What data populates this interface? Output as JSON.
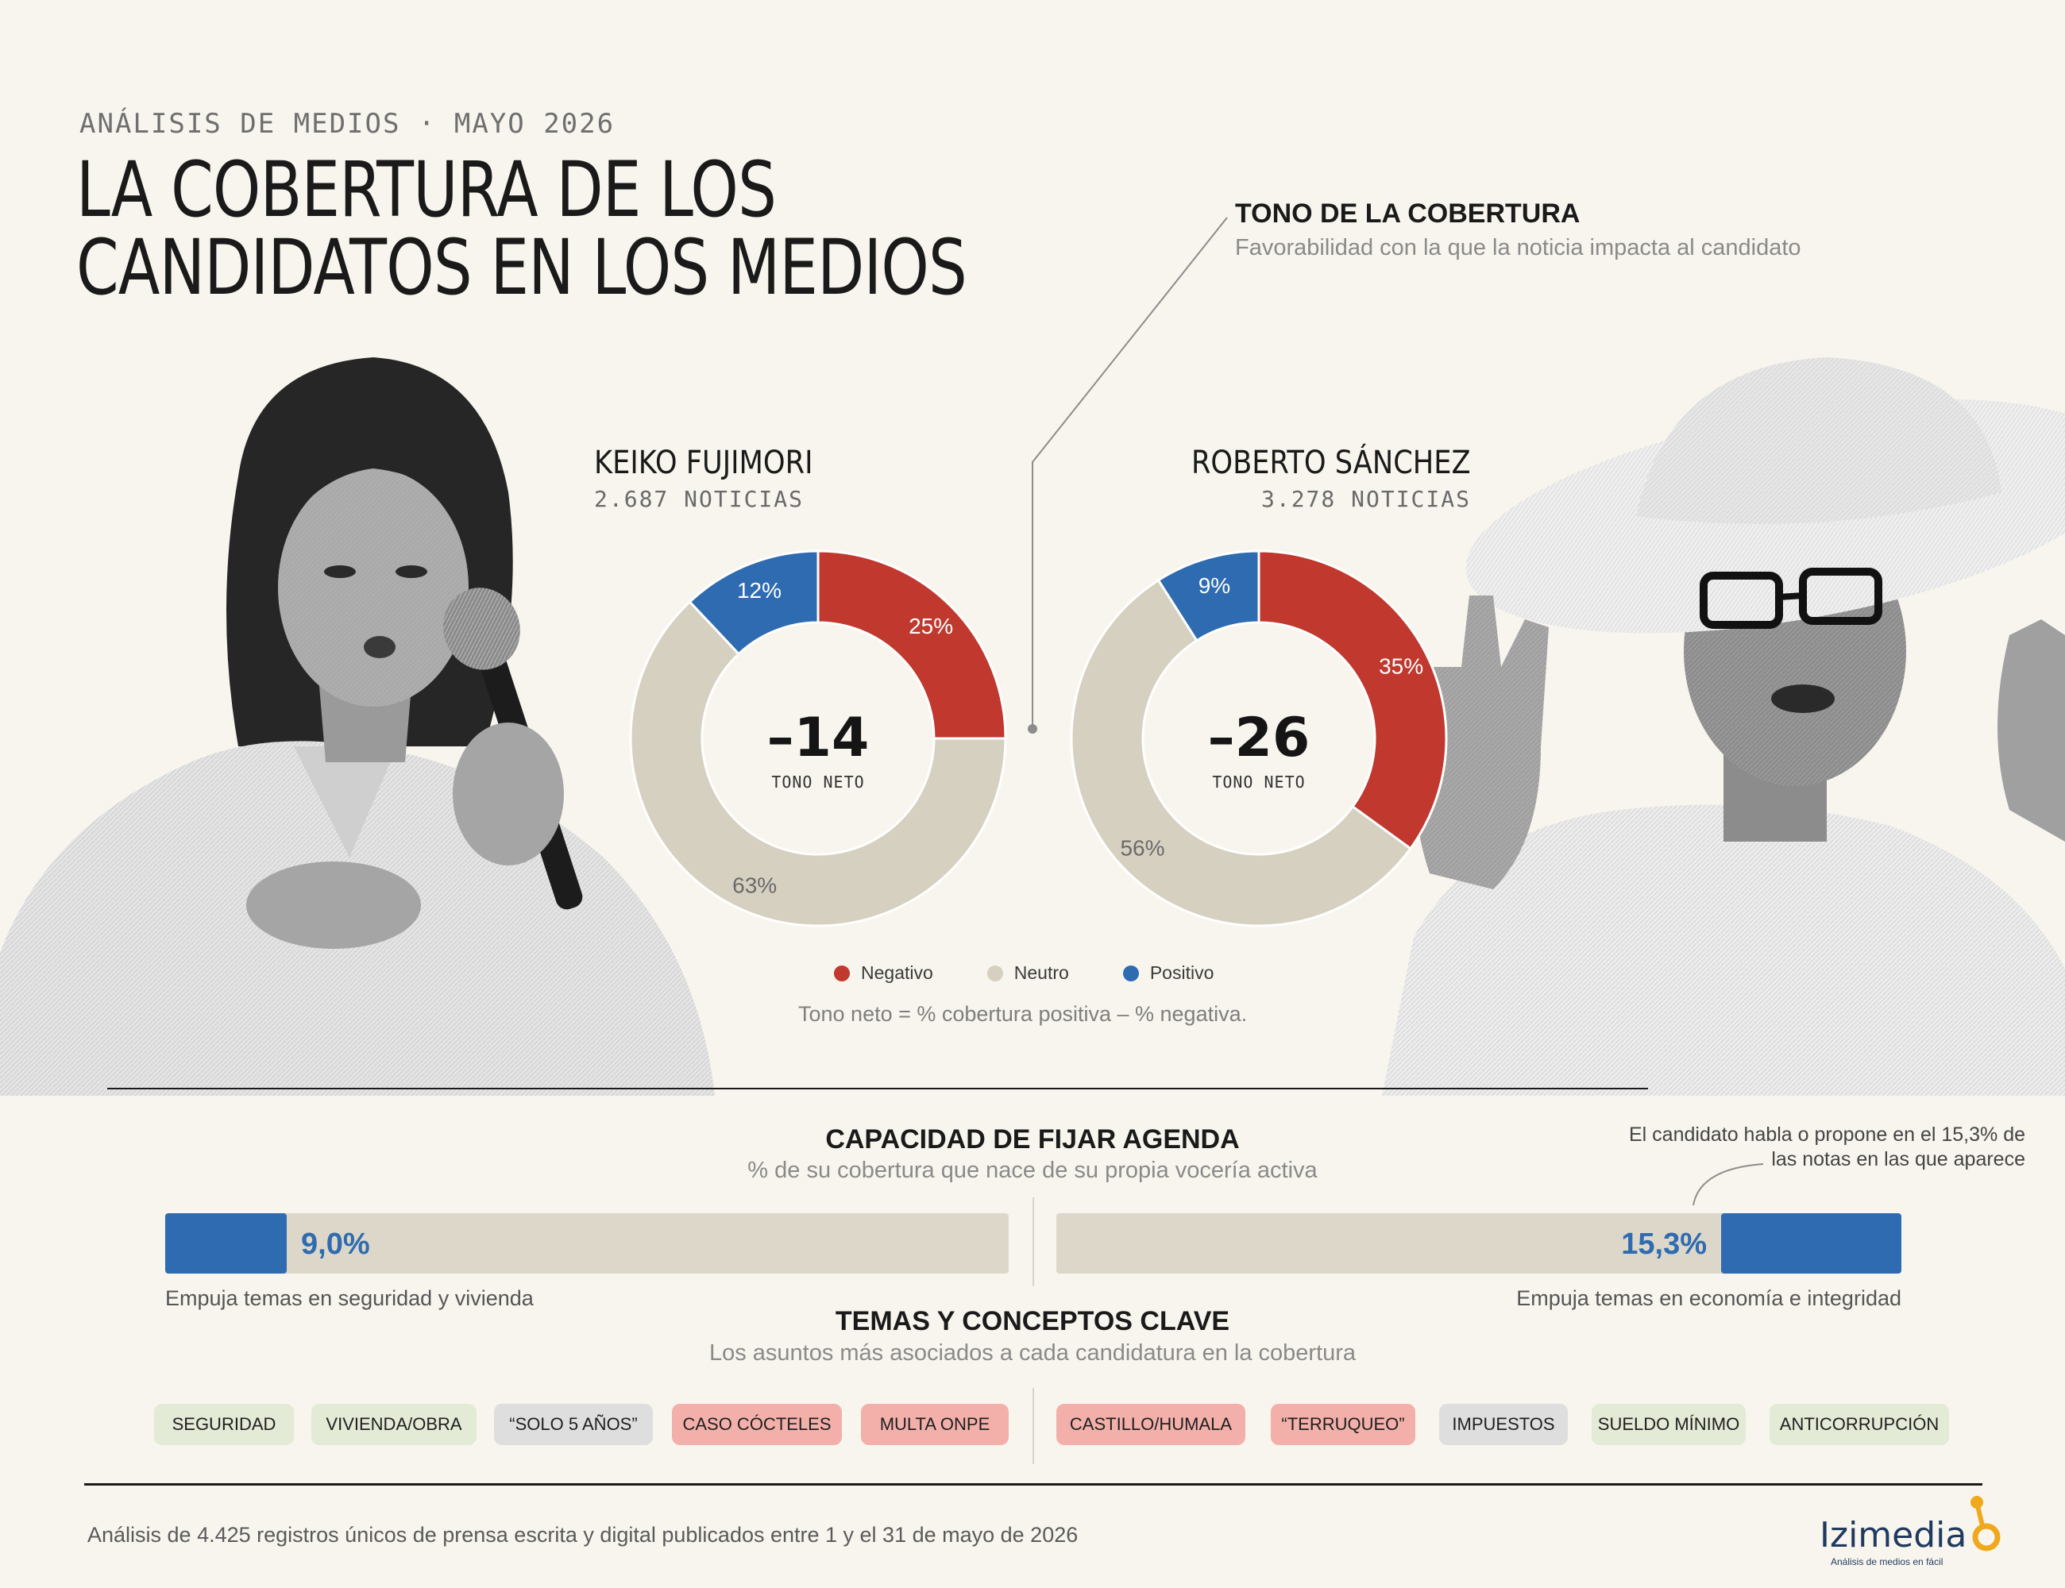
{
  "header": {
    "kicker": "ANÁLISIS DE MEDIOS · MAYO 2026",
    "title_line1": "LA COBERTURA DE LOS",
    "title_line2": "CANDIDATOS EN LOS MEDIOS"
  },
  "tone_section": {
    "title": "TONO DE LA COBERTURA",
    "subtitle": "Favorabilidad con la que la noticia impacta al candidato",
    "formula_note": "Tono neto = % cobertura positiva – % negativa."
  },
  "colors": {
    "negative": "#c0382e",
    "neutral": "#d6d0c1",
    "positive": "#2e6bb0",
    "background": "#f8f5ee"
  },
  "chart_data": [
    {
      "type": "pie",
      "candidate": "KEIKO FUJIMORI",
      "count_label": "2.687 NOTICIAS",
      "center_value": "–14",
      "center_label": "TONO NETO",
      "slices": [
        {
          "name": "Negativo",
          "value": 25,
          "label": "25%"
        },
        {
          "name": "Neutro",
          "value": 63,
          "label": "63%"
        },
        {
          "name": "Positivo",
          "value": 12,
          "label": "12%"
        }
      ]
    },
    {
      "type": "pie",
      "candidate": "ROBERTO SÁNCHEZ",
      "count_label": "3.278 NOTICIAS",
      "center_value": "–26",
      "center_label": "TONO NETO",
      "slices": [
        {
          "name": "Negativo",
          "value": 35,
          "label": "35%"
        },
        {
          "name": "Neutro",
          "value": 56,
          "label": "56%"
        },
        {
          "name": "Positivo",
          "value": 9,
          "label": "9%"
        }
      ]
    },
    {
      "type": "bar",
      "title": "CAPACIDAD DE FIJAR AGENDA",
      "subtitle": "% de su cobertura que nace de su propia vocería activa",
      "categories": [
        "KEIKO FUJIMORI",
        "ROBERTO SÁNCHEZ"
      ],
      "values": [
        9.0,
        15.3
      ],
      "value_labels": [
        "9,0%",
        "15,3%"
      ],
      "ylim": [
        0,
        100
      ]
    }
  ],
  "legend": {
    "negative": "Negativo",
    "neutral": "Neutro",
    "positive": "Positivo"
  },
  "agenda": {
    "left_note": "Empuja temas en seguridad y vivienda",
    "right_note": "Empuja temas en economía e integridad",
    "annotation_line1": "El candidato habla o propone en el 15,3% de",
    "annotation_line2": "las notas en las que aparece"
  },
  "topics": {
    "title": "TEMAS Y CONCEPTOS CLAVE",
    "subtitle": "Los asuntos más asociados a cada candidatura en la cobertura",
    "left": [
      {
        "label": "SEGURIDAD",
        "color": "green"
      },
      {
        "label": "VIVIENDA/OBRA",
        "color": "green"
      },
      {
        "label": "“SOLO 5 AÑOS”",
        "color": "gray"
      },
      {
        "label": "CASO CÓCTELES",
        "color": "red"
      },
      {
        "label": "MULTA ONPE",
        "color": "red"
      }
    ],
    "right": [
      {
        "label": "CASTILLO/HUMALA",
        "color": "red"
      },
      {
        "label": "“TERRUQUEO”",
        "color": "red"
      },
      {
        "label": "IMPUESTOS",
        "color": "gray"
      },
      {
        "label": "SUELDO MÍNIMO",
        "color": "green"
      },
      {
        "label": "ANTICORRUPCIÓN",
        "color": "green"
      }
    ]
  },
  "footer": {
    "source": "Análisis de 4.425 registros únicos de prensa escrita y digital publicados entre 1 y el 31 de mayo de 2026",
    "brand": "Izimedia",
    "brand_tagline": "Análisis de medios en fácil"
  }
}
